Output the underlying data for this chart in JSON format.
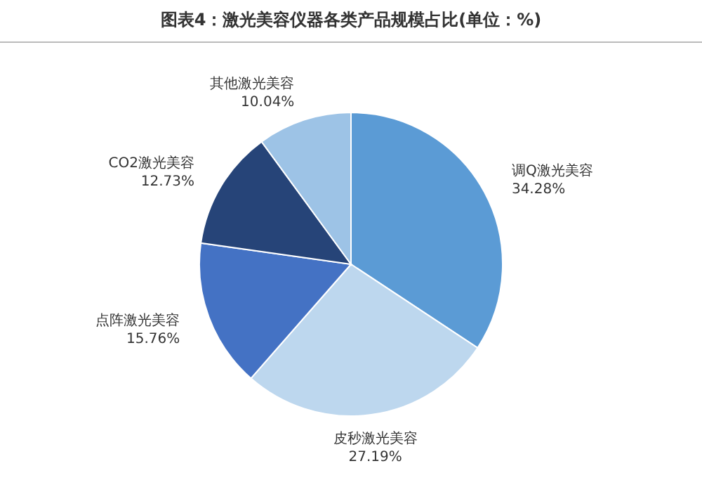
{
  "chart_data": {
    "type": "pie",
    "title": "图表4：激光美容仪器各类产品规模占比(单位：%)",
    "categories": [
      "调Q激光美容",
      "皮秒激光美容",
      "点阵激光美容",
      "CO2激光美容",
      "其他激光美容"
    ],
    "values": [
      34.28,
      27.19,
      15.76,
      12.73,
      10.04
    ],
    "value_labels": [
      "34.28%",
      "27.19%",
      "15.76%",
      "12.73%",
      "10.04%"
    ],
    "colors": [
      "#5b9bd5",
      "#bdd7ee",
      "#4472c4",
      "#264478",
      "#9dc3e6"
    ],
    "legend": false
  }
}
